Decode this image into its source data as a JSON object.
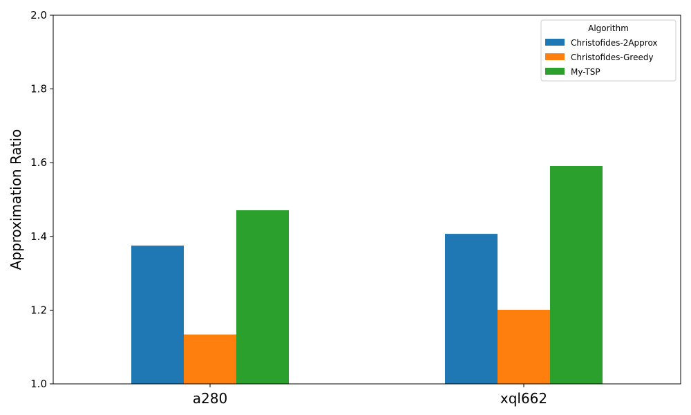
{
  "chart_data": {
    "type": "bar",
    "categories": [
      "a280",
      "xql662"
    ],
    "series": [
      {
        "name": "Christofides-2Approx",
        "values": [
          1.375,
          1.407
        ],
        "color": "#1f77b4"
      },
      {
        "name": "Christofides-Greedy",
        "values": [
          1.134,
          1.201
        ],
        "color": "#ff7f0e"
      },
      {
        "name": "My-TSP",
        "values": [
          1.471,
          1.591
        ],
        "color": "#2ca02c"
      }
    ],
    "ylabel": "Approximation Ratio",
    "xlabel": "",
    "ylim": [
      1.0,
      2.0
    ],
    "yticks": [
      "1.0",
      "1.2",
      "1.4",
      "1.6",
      "1.8",
      "2.0"
    ],
    "legend": {
      "title": "Algorithm",
      "placement": "top-right"
    },
    "grid": false
  }
}
